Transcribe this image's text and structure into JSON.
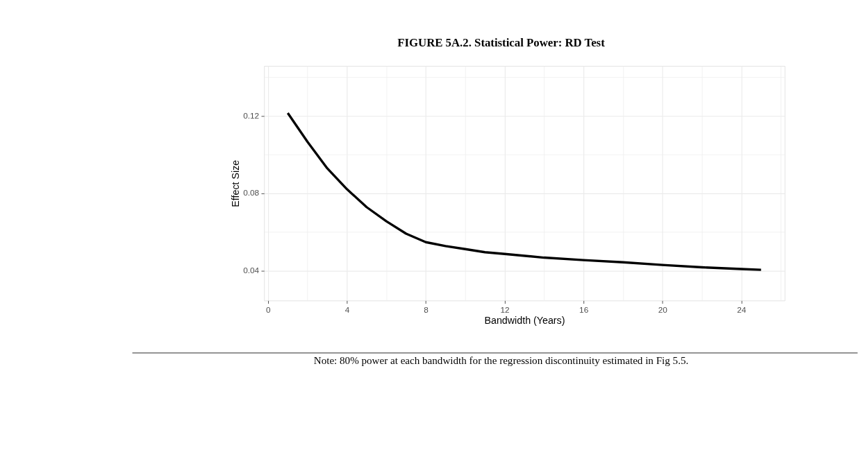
{
  "chart_data": {
    "type": "line",
    "title": "FIGURE 5A.2. Statistical Power: RD Test",
    "xlabel": "Bandwidth (Years)",
    "ylabel": "Effect Size",
    "x": [
      1,
      2,
      3,
      4,
      5,
      6,
      7,
      8,
      9,
      10,
      11,
      12,
      14,
      16,
      18,
      20,
      22,
      24,
      25
    ],
    "series": [
      {
        "color": "#000000",
        "values": [
          0.1215,
          0.1066,
          0.0929,
          0.0821,
          0.0728,
          0.0655,
          0.0591,
          0.0547,
          0.0527,
          0.0511,
          0.0495,
          0.0486,
          0.0467,
          0.0454,
          0.0443,
          0.0429,
          0.0417,
          0.0408,
          0.0404
        ]
      }
    ],
    "xlim": [
      -0.2,
      26.2
    ],
    "xticks": [
      0,
      {
        "value": 2,
        "label": null
      },
      4,
      {
        "value": 6,
        "label": null
      },
      8,
      {
        "value": 10,
        "label": null
      },
      12,
      {
        "value": 14,
        "label": null
      },
      16,
      {
        "value": 18,
        "label": null
      },
      20,
      {
        "value": 22,
        "label": null
      },
      24,
      {
        "value": 26,
        "label": null
      }
    ],
    "ylim": [
      0.0245,
      0.1458
    ],
    "yticks": [
      0.04,
      {
        "value": 0.06,
        "label": null
      },
      0.08,
      {
        "value": 0.1,
        "label": null
      },
      0.12,
      {
        "value": 0.14,
        "label": null
      }
    ],
    "grid": true,
    "legend": false,
    "marker": "none",
    "line_style": "solid",
    "annotations": [
      "Note: 80% power at each bandwidth for the regression discontinuity estimated in Fig 5.5."
    ]
  }
}
